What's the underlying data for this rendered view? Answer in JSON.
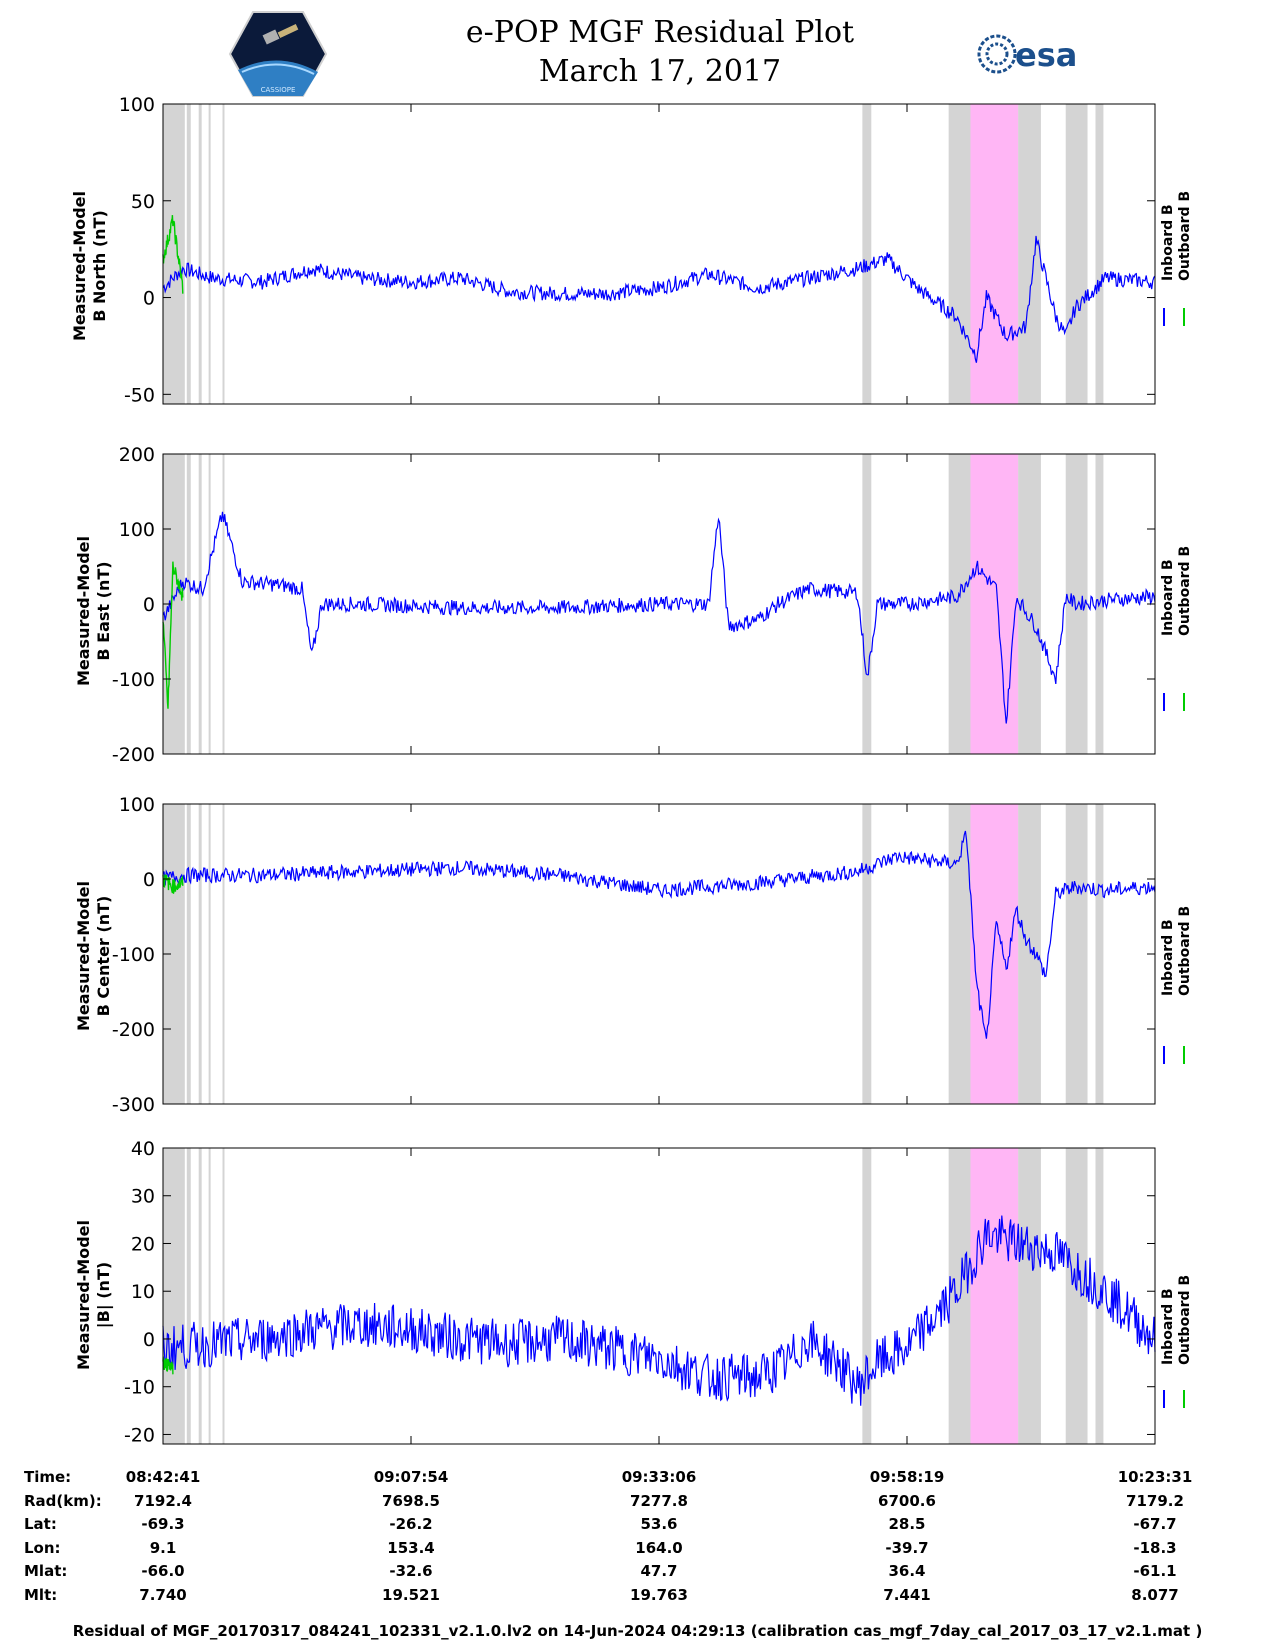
{
  "header": {
    "title_line1": "e-POP MGF Residual Plot",
    "title_line2": "March 17, 2017",
    "logo_left_text": "CASSIOPE",
    "logo_right_text": "esa"
  },
  "colors": {
    "inboard": "#0000ff",
    "outboard": "#00cc00",
    "gray_band": "#d4d4d4",
    "pink_band": "#ffb6f5"
  },
  "legend": {
    "inboard": "Inboard B",
    "outboard": "Outboard B"
  },
  "chart_data": [
    {
      "type": "line",
      "ylabel_line1": "Measured-Model",
      "ylabel_line2": "B North (nT)",
      "ylim": [
        -55,
        100
      ],
      "yticks": [
        100,
        50,
        0,
        -50
      ],
      "series": [
        {
          "name": "Inboard B",
          "x": [
            0,
            2,
            5,
            10,
            15,
            20,
            25,
            30,
            35,
            40,
            45,
            50,
            55,
            60,
            65,
            70,
            73,
            76,
            80,
            82,
            83,
            85,
            87,
            88,
            90,
            91,
            92,
            95,
            100
          ],
          "y": [
            5,
            15,
            10,
            8,
            15,
            10,
            8,
            10,
            3,
            2,
            2,
            5,
            12,
            5,
            10,
            15,
            20,
            5,
            -10,
            -30,
            0,
            -20,
            -15,
            30,
            -10,
            -20,
            -5,
            10,
            8
          ]
        },
        {
          "name": "Outboard B",
          "x": [
            0,
            1,
            2
          ],
          "y": [
            20,
            40,
            5
          ]
        }
      ],
      "shaded_gray": [
        [
          0,
          2.2
        ],
        [
          2.4,
          2.8
        ],
        [
          3.6,
          3.9
        ],
        [
          4.6,
          4.8
        ],
        [
          6,
          6.2
        ],
        [
          70.5,
          71.4
        ],
        [
          79.2,
          81.4
        ],
        [
          86.2,
          88.5
        ],
        [
          91,
          93.2
        ],
        [
          94,
          94.8
        ]
      ],
      "shaded_pink": [
        [
          81.4,
          86.2
        ]
      ]
    },
    {
      "type": "line",
      "ylabel_line1": "Measured-Model",
      "ylabel_line2": "B East (nT)",
      "ylim": [
        -200,
        200
      ],
      "yticks": [
        200,
        100,
        0,
        -100,
        -200
      ],
      "series": [
        {
          "name": "Inboard B",
          "x": [
            0,
            2,
            4,
            6,
            8,
            12,
            14,
            15,
            16,
            20,
            30,
            40,
            50,
            55,
            56,
            57,
            60,
            62,
            65,
            70,
            71,
            72,
            75,
            80,
            82,
            84,
            85,
            86,
            88,
            90,
            91,
            92,
            95,
            100
          ],
          "y": [
            -20,
            30,
            20,
            120,
            30,
            25,
            20,
            -70,
            0,
            0,
            -5,
            -5,
            0,
            0,
            120,
            -30,
            -20,
            0,
            20,
            15,
            -100,
            0,
            0,
            10,
            50,
            20,
            -160,
            10,
            -30,
            -100,
            10,
            0,
            5,
            10
          ]
        },
        {
          "name": "Outboard B",
          "x": [
            0,
            0.5,
            1,
            1.5,
            2
          ],
          "y": [
            -20,
            -140,
            50,
            30,
            10
          ]
        }
      ],
      "shaded_gray": [
        [
          0,
          2.2
        ],
        [
          2.4,
          2.8
        ],
        [
          3.6,
          3.9
        ],
        [
          4.6,
          4.8
        ],
        [
          6,
          6.2
        ],
        [
          70.5,
          71.4
        ],
        [
          79.2,
          81.4
        ],
        [
          86.2,
          88.5
        ],
        [
          91,
          93.2
        ],
        [
          94,
          94.8
        ]
      ],
      "shaded_pink": [
        [
          81.4,
          86.2
        ]
      ]
    },
    {
      "type": "line",
      "ylabel_line1": "Measured-Model",
      "ylabel_line2": "B Center (nT)",
      "ylim": [
        -300,
        100
      ],
      "yticks": [
        100,
        0,
        -100,
        -200,
        -300
      ],
      "series": [
        {
          "name": "Inboard B",
          "x": [
            0,
            2,
            10,
            20,
            30,
            40,
            50,
            60,
            70,
            74,
            80,
            81,
            82,
            83,
            84,
            85,
            86,
            87,
            88,
            89,
            90,
            92,
            95,
            100
          ],
          "y": [
            0,
            5,
            5,
            10,
            15,
            5,
            -15,
            -5,
            10,
            30,
            20,
            60,
            -140,
            -220,
            -60,
            -120,
            -40,
            -80,
            -100,
            -130,
            -20,
            -10,
            -15,
            -10
          ]
        },
        {
          "name": "Outboard B",
          "x": [
            0,
            1,
            2
          ],
          "y": [
            0,
            -10,
            -5
          ]
        }
      ],
      "shaded_gray": [
        [
          0,
          2.2
        ],
        [
          2.4,
          2.8
        ],
        [
          3.6,
          3.9
        ],
        [
          4.6,
          4.8
        ],
        [
          6,
          6.2
        ],
        [
          70.5,
          71.4
        ],
        [
          79.2,
          81.4
        ],
        [
          86.2,
          88.5
        ],
        [
          91,
          93.2
        ],
        [
          94,
          94.8
        ]
      ],
      "shaded_pink": [
        [
          81.4,
          86.2
        ]
      ]
    },
    {
      "type": "line",
      "ylabel_line1": "Measured-Model",
      "ylabel_line2": "|B| (nT)",
      "ylim": [
        -22,
        40
      ],
      "yticks": [
        40,
        30,
        20,
        10,
        0,
        -10,
        -20
      ],
      "series": [
        {
          "name": "Inboard B",
          "x": [
            0,
            10,
            15,
            20,
            25,
            30,
            35,
            40,
            45,
            50,
            55,
            60,
            63,
            65,
            68,
            70,
            72,
            75,
            78,
            80,
            83,
            86,
            90,
            95,
            100
          ],
          "y": [
            -2,
            0,
            2,
            3,
            2,
            0,
            -1,
            0,
            -2,
            -4,
            -8,
            -8,
            -5,
            0,
            -5,
            -10,
            -5,
            -2,
            5,
            10,
            22,
            20,
            18,
            10,
            0
          ]
        },
        {
          "name": "Outboard B",
          "x": [
            0,
            1
          ],
          "y": [
            -5,
            -6
          ]
        }
      ],
      "shaded_gray": [
        [
          0,
          2.2
        ],
        [
          2.4,
          2.8
        ],
        [
          3.6,
          3.9
        ],
        [
          4.6,
          4.8
        ],
        [
          6,
          6.2
        ],
        [
          70.5,
          71.4
        ],
        [
          79.2,
          81.4
        ],
        [
          86.2,
          88.5
        ],
        [
          91,
          93.2
        ],
        [
          94,
          94.8
        ]
      ],
      "shaded_pink": [
        [
          81.4,
          86.2
        ]
      ]
    }
  ],
  "info_table": {
    "rows": [
      {
        "label": "Time:",
        "values": [
          "08:42:41",
          "09:07:54",
          "09:33:06",
          "09:58:19",
          "10:23:31"
        ]
      },
      {
        "label": "Rad(km):",
        "values": [
          "7192.4",
          "7698.5",
          "7277.8",
          "6700.6",
          "7179.2"
        ]
      },
      {
        "label": "Lat:",
        "values": [
          "-69.3",
          "-26.2",
          "53.6",
          "28.5",
          "-67.7"
        ]
      },
      {
        "label": "Lon:",
        "values": [
          "9.1",
          "153.4",
          "164.0",
          "-39.7",
          "-18.3"
        ]
      },
      {
        "label": "Mlat:",
        "values": [
          "-66.0",
          "-32.6",
          "47.7",
          "36.4",
          "-61.1"
        ]
      },
      {
        "label": "Mlt:",
        "values": [
          "7.740",
          "19.521",
          "19.763",
          "7.441",
          "8.077"
        ]
      }
    ]
  },
  "footer": "Residual of MGF_20170317_084241_102331_v2.1.0.lv2 on 14-Jun-2024 04:29:13 (calibration cas_mgf_7day_cal_2017_03_17_v2.1.mat )"
}
